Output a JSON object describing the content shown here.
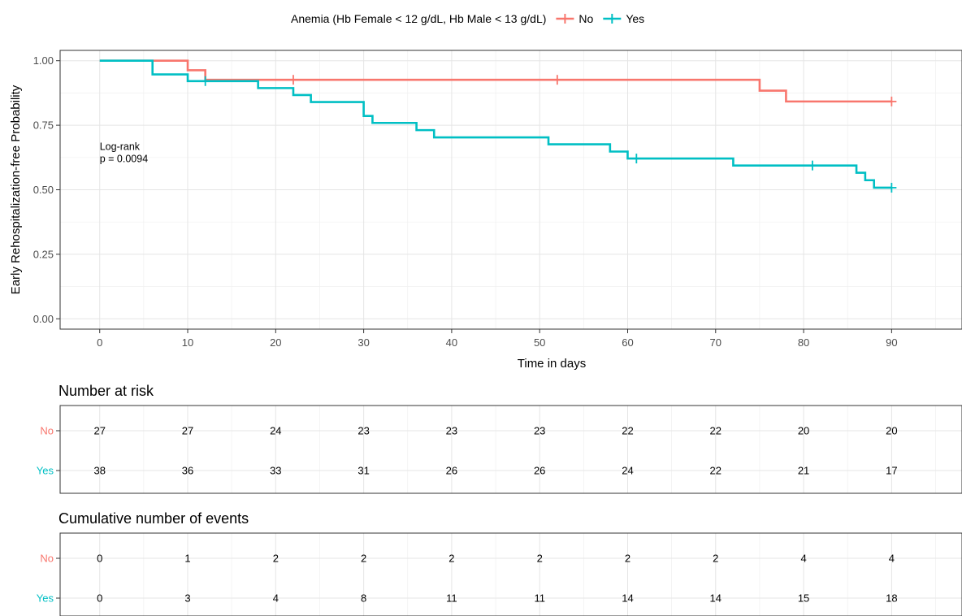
{
  "chart_data": {
    "type": "line",
    "step": true,
    "legend": {
      "title": "Anemia (Hb Female < 12 g/dL, Hb Male < 13 g/dL)",
      "position": "top"
    },
    "xlabel": "Time in days",
    "ylabel": "Early Rehospitalization-free Probability",
    "xlim": [
      -4.5,
      98
    ],
    "ylim": [
      -0.04,
      1.04
    ],
    "x_ticks": [
      0,
      10,
      20,
      30,
      40,
      50,
      60,
      70,
      80,
      90
    ],
    "y_ticks": [
      0,
      0.25,
      0.5,
      0.75,
      1
    ],
    "y_tick_labels": [
      "0.00",
      "0.25",
      "0.50",
      "0.75",
      "1.00"
    ],
    "grid": true,
    "annotation": {
      "line1": "Log-rank",
      "line2": "p = 0.0094",
      "x": 0,
      "y": 0.61
    },
    "series": [
      {
        "name": "No",
        "color": "#F8766D",
        "x": [
          0,
          10,
          12,
          75,
          78,
          90
        ],
        "y": [
          1.0,
          0.963,
          0.926,
          0.884,
          0.842,
          0.842
        ],
        "censored": [
          {
            "x": 22,
            "y": 0.926
          },
          {
            "x": 52,
            "y": 0.926
          },
          {
            "x": 90,
            "y": 0.842
          }
        ]
      },
      {
        "name": "Yes",
        "color": "#00BFC4",
        "x": [
          0,
          6,
          10,
          18,
          22,
          24,
          30,
          31,
          36,
          38,
          51,
          58,
          60,
          72,
          86,
          87,
          88,
          90
        ],
        "y": [
          1.0,
          0.947,
          0.921,
          0.894,
          0.867,
          0.84,
          0.786,
          0.759,
          0.731,
          0.703,
          0.676,
          0.648,
          0.621,
          0.594,
          0.566,
          0.537,
          0.508,
          0.508
        ],
        "censored": [
          {
            "x": 12,
            "y": 0.921
          },
          {
            "x": 61,
            "y": 0.621
          },
          {
            "x": 81,
            "y": 0.594
          },
          {
            "x": 90,
            "y": 0.508
          }
        ]
      }
    ],
    "tables": [
      {
        "title": "Number at risk",
        "times": [
          0,
          10,
          20,
          30,
          40,
          50,
          60,
          70,
          80,
          90
        ],
        "rows": [
          {
            "name": "No",
            "color": "#F8766D",
            "values": [
              27,
              27,
              24,
              23,
              23,
              23,
              22,
              22,
              20,
              20
            ]
          },
          {
            "name": "Yes",
            "color": "#00BFC4",
            "values": [
              38,
              36,
              33,
              31,
              26,
              26,
              24,
              22,
              21,
              17
            ]
          }
        ]
      },
      {
        "title": "Cumulative number of events",
        "times": [
          0,
          10,
          20,
          30,
          40,
          50,
          60,
          70,
          80,
          90
        ],
        "rows": [
          {
            "name": "No",
            "color": "#F8766D",
            "values": [
              0,
              1,
              2,
              2,
              2,
              2,
              2,
              2,
              4,
              4
            ]
          },
          {
            "name": "Yes",
            "color": "#00BFC4",
            "values": [
              0,
              3,
              4,
              8,
              11,
              11,
              14,
              14,
              15,
              18
            ]
          }
        ]
      }
    ]
  }
}
